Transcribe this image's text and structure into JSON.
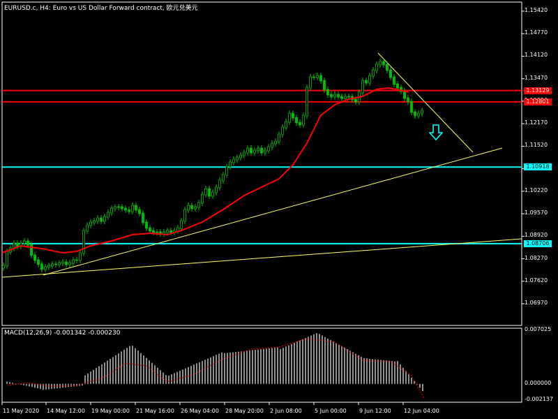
{
  "header": {
    "title": "EURUSD.c, H4:  Euro vs US Dollar Forward contract, 欧元兑美元"
  },
  "colors": {
    "bull": "#00c000",
    "bear": "#00c000",
    "ma": "#ff0000",
    "hline_red": "#ff0000",
    "hline_cyan": "#00ffff",
    "trend": "#ffff66",
    "macd_hist": "#c0c0c0",
    "macd_signal": "#ff0000",
    "grid": "#ffffff"
  },
  "price_axis": {
    "ticks": [
      "1.15420",
      "1.14770",
      "1.14120",
      "1.13470",
      "1.12820",
      "1.12170",
      "1.11520",
      "1.10870",
      "1.10220",
      "1.09570",
      "1.08920",
      "1.08270",
      "1.07620",
      "1.06970"
    ],
    "tick_values": [
      1.1542,
      1.1477,
      1.1412,
      1.1347,
      1.1282,
      1.1217,
      1.1152,
      1.1087,
      1.1022,
      1.0957,
      1.0892,
      1.0827,
      1.0762,
      1.0697
    ],
    "tags": [
      {
        "label": "1.13129",
        "value": 1.13129,
        "color": "red"
      },
      {
        "label": "1.12801",
        "value": 1.12801,
        "color": "red"
      },
      {
        "label": "1.10918",
        "value": 1.10918,
        "color": "cyan"
      },
      {
        "label": "1.08706",
        "value": 1.08706,
        "color": "cyan"
      }
    ]
  },
  "time_axis": {
    "labels": [
      "11 May 2020",
      "14 May 12:00",
      "19 May 00:00",
      "21 May 16:00",
      "26 May 04:00",
      "28 May 20:00",
      "2 Jun 08:00",
      "5 Jun 00:00",
      "9 Jun 12:00",
      "12 Jun 04:00"
    ]
  },
  "macd": {
    "label": "MACD(12,26,9) -0.001342 -0.000230",
    "ticks": [
      "0.007025",
      "0.000000",
      "-0.002137"
    ],
    "tick_values": [
      0.007025,
      0.0,
      -0.002137
    ]
  },
  "signal_arrow": {
    "icon": "down-arrow-icon",
    "color": "#00ffff"
  }
}
